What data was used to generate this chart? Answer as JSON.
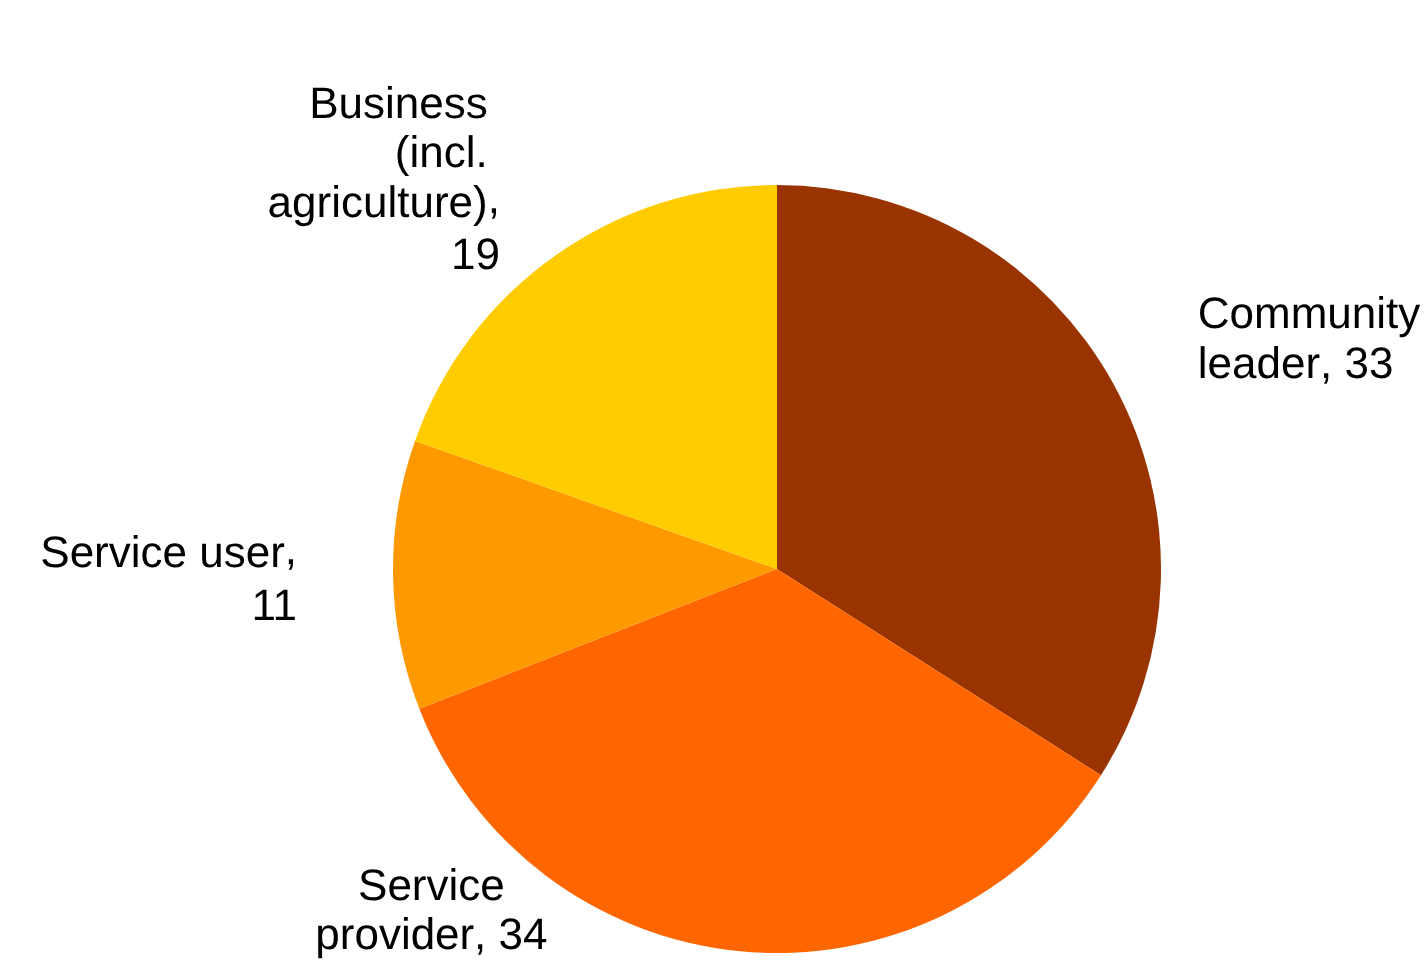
{
  "chart_data": {
    "type": "pie",
    "categories": [
      "Community leader",
      "Service provider",
      "Service user",
      "Business (incl. agriculture)"
    ],
    "values": [
      33,
      34,
      11,
      19
    ],
    "value_labels": [
      ", 33",
      ", 34",
      ", 11",
      ", 19"
    ],
    "colors": [
      "#993300",
      "#ff6600",
      "#ff9900",
      "#ffcc00"
    ],
    "legend": false
  }
}
